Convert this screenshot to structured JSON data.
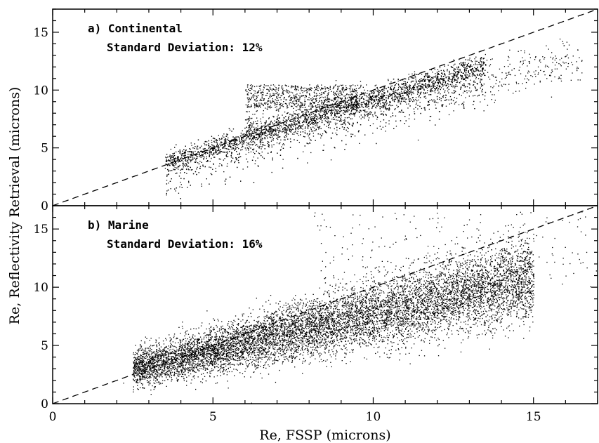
{
  "chart_data": [
    {
      "type": "scatter",
      "panel_label": "a) Continental",
      "annotation": "Standard Deviation: 12%",
      "xlim": [
        0,
        17
      ],
      "ylim": [
        0,
        17
      ],
      "y_ticks": [
        "0",
        "5",
        "10",
        "15"
      ],
      "reference_line": "1:1 dashed line",
      "density": {
        "main_band": {
          "x_range": [
            3.5,
            13.5
          ],
          "slope": 0.85,
          "intercept": 0.8,
          "spread": 0.45
        },
        "upper_cluster": {
          "x_range": [
            6.0,
            9.5
          ],
          "y_range": [
            8.5,
            10.5
          ]
        },
        "lower_tail": {
          "x_range": [
            6.0,
            16.5
          ],
          "y_approx": "0.55x + 3.5"
        }
      },
      "points": [
        [
          3.6,
          2.0
        ],
        [
          4.2,
          3.8
        ],
        [
          4.5,
          4.3
        ],
        [
          5.0,
          5.0
        ],
        [
          5.5,
          5.6
        ],
        [
          6.0,
          6.2
        ],
        [
          6.5,
          6.6
        ],
        [
          7.0,
          7.0
        ],
        [
          7.5,
          7.4
        ],
        [
          8.0,
          7.9
        ],
        [
          8.5,
          8.4
        ],
        [
          9.0,
          8.9
        ],
        [
          9.5,
          9.3
        ],
        [
          10.0,
          9.9
        ],
        [
          10.5,
          10.6
        ],
        [
          11.0,
          11.0
        ],
        [
          11.5,
          11.4
        ],
        [
          12.0,
          11.8
        ],
        [
          12.5,
          12.2
        ],
        [
          13.0,
          12.8
        ],
        [
          7.0,
          9.8
        ],
        [
          8.0,
          10.1
        ],
        [
          11.0,
          9.0
        ],
        [
          12.0,
          10.0
        ],
        [
          13.0,
          10.5
        ],
        [
          14.0,
          11.0
        ],
        [
          15.0,
          11.6
        ],
        [
          16.0,
          12.4
        ],
        [
          16.5,
          12.6
        ]
      ]
    },
    {
      "type": "scatter",
      "panel_label": "b) Marine",
      "annotation": "Standard Deviation: 16%",
      "xlim": [
        0,
        17
      ],
      "ylim": [
        0,
        17
      ],
      "x_ticks": [
        "0",
        "5",
        "10",
        "15"
      ],
      "y_ticks": [
        "0",
        "5",
        "10",
        "15"
      ],
      "xlabel": "Re, FSSP (microns)",
      "reference_line": "1:1 dashed line",
      "density": {
        "main_band": {
          "x_range": [
            2.5,
            15.0
          ],
          "slope": 0.62,
          "intercept": 1.5,
          "spread": 1.0
        },
        "upper_scatter": {
          "x_range": [
            8.0,
            17.0
          ],
          "y_range": [
            10.0,
            16.5
          ]
        }
      },
      "points": [
        [
          2.2,
          1.8
        ],
        [
          3.0,
          2.4
        ],
        [
          4.0,
          3.5
        ],
        [
          5.0,
          4.6
        ],
        [
          6.0,
          5.3
        ],
        [
          7.0,
          6.0
        ],
        [
          8.0,
          6.6
        ],
        [
          9.0,
          7.3
        ],
        [
          10.0,
          8.0
        ],
        [
          11.0,
          8.6
        ],
        [
          12.0,
          9.2
        ],
        [
          13.0,
          9.8
        ],
        [
          14.0,
          10.4
        ],
        [
          15.0,
          10.8
        ],
        [
          16.0,
          11.0
        ],
        [
          8.5,
          11.8
        ],
        [
          12.0,
          12.0
        ],
        [
          13.5,
          12.3
        ],
        [
          16.5,
          16.5
        ],
        [
          15.0,
          14.0
        ],
        [
          16.2,
          13.0
        ]
      ]
    }
  ],
  "shared_ylabel": "Re, Reflectivity Retrieval (microns)"
}
